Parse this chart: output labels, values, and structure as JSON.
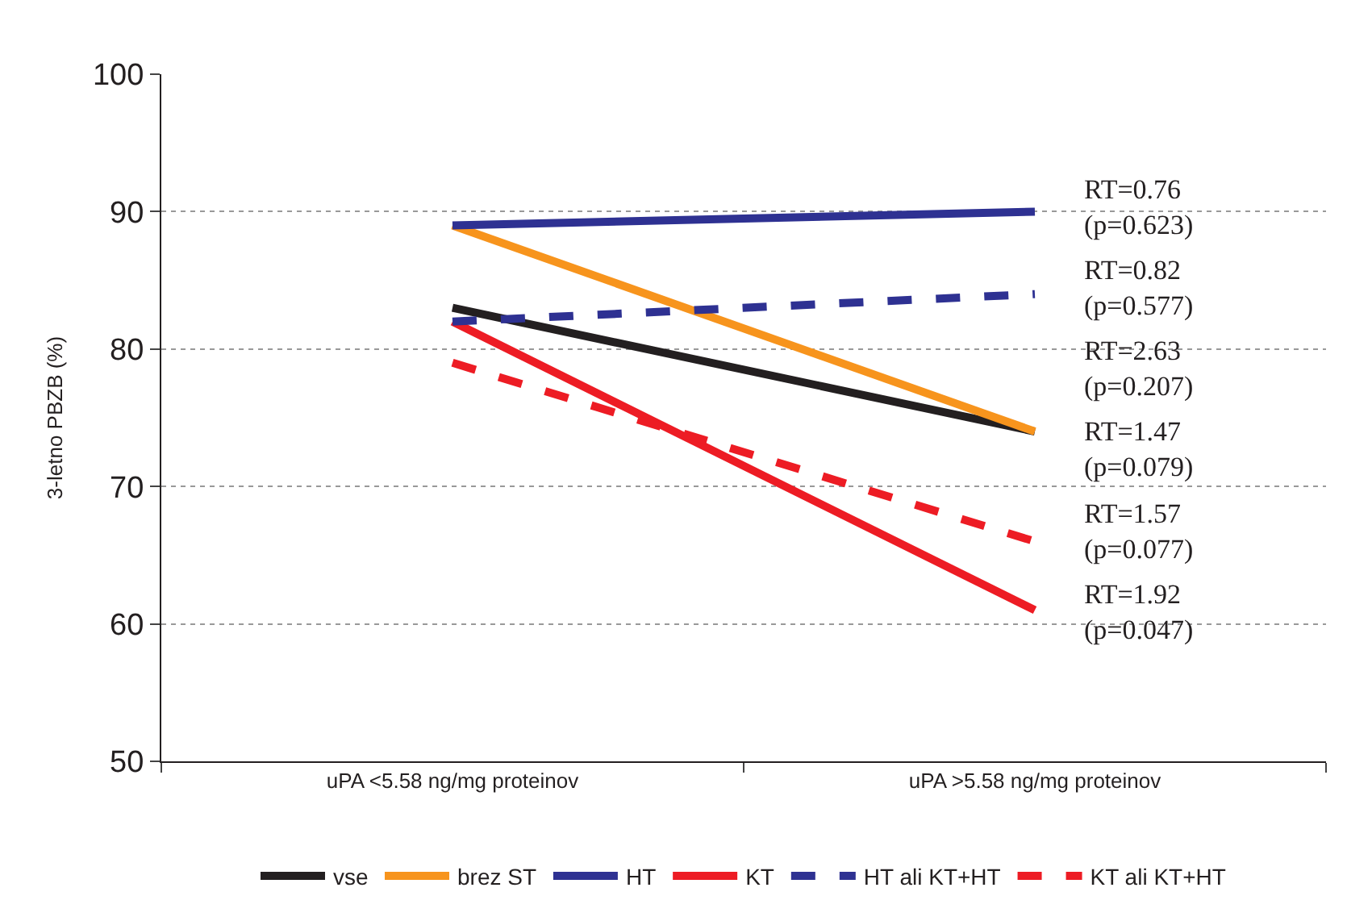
{
  "chart_data": {
    "type": "line",
    "ylabel": "3-letno PBZB (%)",
    "categories": [
      "uPA <5.58 ng/mg proteinov",
      "uPA >5.58 ng/mg proteinov"
    ],
    "ylim": [
      50,
      100
    ],
    "yticks": [
      50,
      60,
      70,
      80,
      90,
      100
    ],
    "grid": "y",
    "legend": "bottom",
    "marker": "none",
    "series": [
      {
        "name": "vse",
        "color": "#231f20",
        "values": [
          83,
          74
        ]
      },
      {
        "name": "brez ST",
        "color": "#f7941d",
        "values": [
          89,
          74
        ]
      },
      {
        "name": "HT",
        "color": "#2e3192",
        "values": [
          89,
          90
        ]
      },
      {
        "name": "KT",
        "color": "#ed1c24",
        "values": [
          82,
          61
        ]
      },
      {
        "name": "HT ali KT+HT",
        "color": "#2e3192",
        "values": [
          82,
          84
        ],
        "line_style": "dashed"
      },
      {
        "name": "KT ali KT+HT",
        "color": "#ed1c24",
        "values": [
          79,
          66
        ],
        "line_style": "dashed"
      }
    ],
    "annotations": [
      "RT=0.76\n(p=0.623)",
      "RT=0.82\n(p=0.577)",
      "RT=2.63\n(p=0.207)",
      "RT=1.47\n(p=0.079)",
      "RT=1.57\n(p=0.077)",
      "RT=1.92\n(p=0.047)"
    ]
  }
}
